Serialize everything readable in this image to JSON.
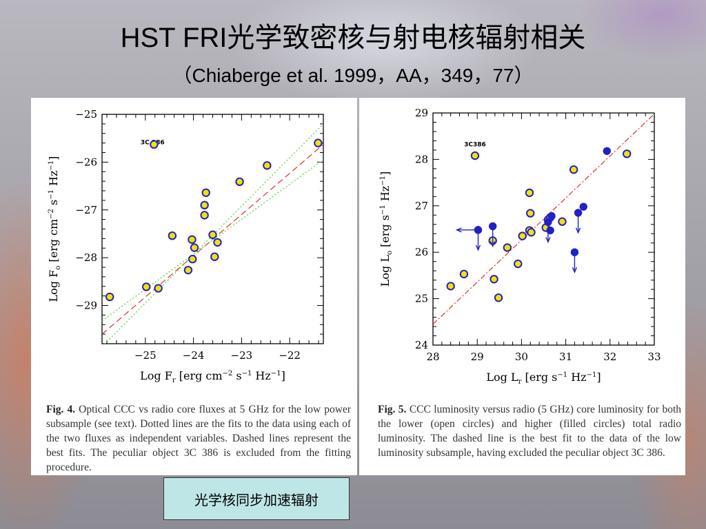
{
  "slide": {
    "title": "HST FRI光学致密核与射电核辐射相关",
    "subtitle": "（Chiaberge et al. 1999，AA，349，77）",
    "note": "光学核同步加速辐射"
  },
  "colors": {
    "marker_fill": "#f2e200",
    "marker_edge": "#2121c8",
    "fit": "#e23a3a",
    "alt_fit": "#58d43a",
    "note_bg": "#bfe6e6"
  },
  "chart_data": [
    {
      "type": "scatter",
      "fig_label": "Fig. 4.",
      "caption": "Optical CCC vs radio core fluxes at 5 GHz for the low power subsample (see text). Dotted lines are the fits to the data using each of the two fluxes as independent variables. Dashed lines represent the best fits. The peculiar object 3C 386 is excluded from the fitting procedure.",
      "xlabel": "Log F_r [erg cm^-2 s^-1 Hz^-1]",
      "ylabel": "Log F_o [erg cm^-2 s^-1 Hz^-1]",
      "xlim": [
        -25.9,
        -21.3
      ],
      "ylim": [
        -29.8,
        -25.0
      ],
      "xticks": [
        -25,
        -24,
        -23,
        -22
      ],
      "yticks": [
        -25,
        -26,
        -27,
        -28,
        -29
      ],
      "tick_labels": {
        "x": [
          "−25",
          "−24",
          "−23",
          "−22"
        ],
        "y": [
          "−25",
          "−26",
          "−27",
          "−28",
          "−29"
        ]
      },
      "annotations": [
        {
          "text": "3C 386",
          "x": -24.85,
          "y": -25.63
        }
      ],
      "points": [
        {
          "x": -25.74,
          "y": -28.82
        },
        {
          "x": -24.98,
          "y": -28.61
        },
        {
          "x": -24.73,
          "y": -28.64
        },
        {
          "x": -24.82,
          "y": -25.63
        },
        {
          "x": -24.44,
          "y": -27.54
        },
        {
          "x": -24.11,
          "y": -28.26
        },
        {
          "x": -24.02,
          "y": -28.03
        },
        {
          "x": -24.03,
          "y": -27.62
        },
        {
          "x": -23.98,
          "y": -27.79
        },
        {
          "x": -23.77,
          "y": -27.11
        },
        {
          "x": -23.77,
          "y": -26.9
        },
        {
          "x": -23.74,
          "y": -26.64
        },
        {
          "x": -23.6,
          "y": -27.52
        },
        {
          "x": -23.5,
          "y": -27.68
        },
        {
          "x": -23.56,
          "y": -27.98
        },
        {
          "x": -23.04,
          "y": -26.41
        },
        {
          "x": -22.47,
          "y": -26.07
        },
        {
          "x": -21.41,
          "y": -25.6
        }
      ],
      "lines": [
        {
          "style": "dashed",
          "from": [
            -25.9,
            -29.6
          ],
          "to": [
            -21.3,
            -25.63
          ]
        },
        {
          "style": "dotted",
          "from": [
            -25.9,
            -29.32
          ],
          "to": [
            -21.3,
            -25.95
          ]
        },
        {
          "style": "dotted",
          "from": [
            -25.9,
            -29.86
          ],
          "to": [
            -21.3,
            -25.2
          ]
        }
      ]
    },
    {
      "type": "scatter",
      "fig_label": "Fig. 5.",
      "caption": "CCC luminosity versus radio (5 GHz) core luminosity for both the lower (open circles) and higher (filled circles) total radio luminosity. The dashed line is the best fit to the data of the low luminosity subsample, having excluded the peculiar object 3C 386.",
      "xlabel": "Log L_r [erg s^-1 Hz^-1]",
      "ylabel": "Log L_o [erg s^-1 Hz^-1]",
      "xlim": [
        28,
        33
      ],
      "ylim": [
        24,
        29
      ],
      "xticks": [
        28,
        29,
        30,
        31,
        32,
        33
      ],
      "yticks": [
        24,
        25,
        26,
        27,
        28,
        29
      ],
      "tick_labels": {
        "x": [
          "28",
          "29",
          "30",
          "31",
          "32",
          "33"
        ],
        "y": [
          "24",
          "25",
          "26",
          "27",
          "28",
          "29"
        ]
      },
      "annotations": [
        {
          "text": "3C386",
          "x": 28.95,
          "y": 28.28
        }
      ],
      "open_points": [
        {
          "x": 28.4,
          "y": 25.27
        },
        {
          "x": 28.7,
          "y": 25.53
        },
        {
          "x": 28.95,
          "y": 28.08
        },
        {
          "x": 29.35,
          "y": 26.25
        },
        {
          "x": 29.38,
          "y": 25.42
        },
        {
          "x": 29.48,
          "y": 25.02
        },
        {
          "x": 29.68,
          "y": 26.1
        },
        {
          "x": 29.92,
          "y": 25.75
        },
        {
          "x": 30.02,
          "y": 26.35
        },
        {
          "x": 30.18,
          "y": 26.47
        },
        {
          "x": 30.2,
          "y": 26.84
        },
        {
          "x": 30.22,
          "y": 26.43
        },
        {
          "x": 30.18,
          "y": 27.28
        },
        {
          "x": 30.55,
          "y": 26.53
        },
        {
          "x": 30.6,
          "y": 26.7
        },
        {
          "x": 30.65,
          "y": 26.75
        },
        {
          "x": 30.92,
          "y": 26.66
        },
        {
          "x": 31.18,
          "y": 27.78
        },
        {
          "x": 32.38,
          "y": 28.12
        }
      ],
      "filled_points": [
        {
          "x": 29.02,
          "y": 26.48,
          "limit": "down"
        },
        {
          "x": 29.02,
          "y": 26.48,
          "limit": "left"
        },
        {
          "x": 29.35,
          "y": 26.56,
          "limit": "down"
        },
        {
          "x": 30.6,
          "y": 26.65,
          "limit": "down"
        },
        {
          "x": 30.68,
          "y": 26.78,
          "limit": "none"
        },
        {
          "x": 30.65,
          "y": 26.47,
          "limit": "none"
        },
        {
          "x": 31.2,
          "y": 26.0,
          "limit": "down"
        },
        {
          "x": 31.28,
          "y": 26.85,
          "limit": "down"
        },
        {
          "x": 31.4,
          "y": 26.98,
          "limit": "none"
        },
        {
          "x": 31.93,
          "y": 28.18,
          "limit": "none"
        }
      ],
      "lines": [
        {
          "style": "dashdot",
          "from": [
            28,
            24.45
          ],
          "to": [
            33,
            28.98
          ]
        }
      ]
    }
  ]
}
